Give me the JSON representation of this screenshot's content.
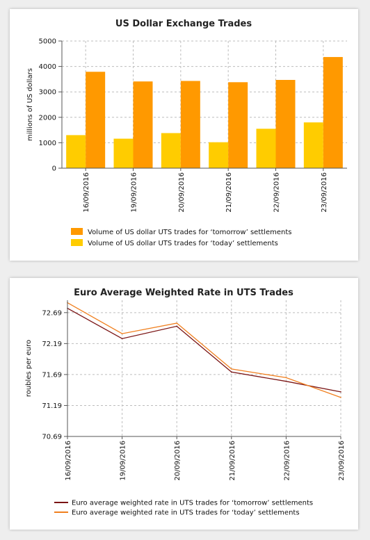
{
  "charts": [
    {
      "type": "bar",
      "title": "US Dollar Exchange Trades",
      "ylabel": "millions of US dollars",
      "xlabel": "",
      "ylim": [
        0,
        5000
      ],
      "yticks": [
        "0",
        "1000",
        "2000",
        "3000",
        "4000",
        "5000"
      ],
      "grid": true,
      "legend_position": "bottom",
      "categories": [
        "16/09/2016",
        "19/09/2016",
        "20/09/2016",
        "21/09/2016",
        "22/09/2016",
        "23/09/2016"
      ],
      "series": [
        {
          "name": "Volume of US dollar UTS trades for ‘today’ settlements",
          "color": "#ffcc00",
          "values": [
            1300,
            1160,
            1380,
            1020,
            1550,
            1800
          ]
        },
        {
          "name": "Volume of US dollar UTS trades for ‘tomorrow’ settlements",
          "color": "#ff9900",
          "values": [
            3790,
            3410,
            3430,
            3380,
            3470,
            4370
          ]
        }
      ],
      "legend_order": [
        1,
        0
      ]
    },
    {
      "type": "line",
      "title": "Euro Average Weighted Rate in UTS Trades",
      "ylabel": "roubles per euro",
      "xlabel": "",
      "ylim": [
        70.69,
        72.89
      ],
      "yticks": [
        "70.69",
        "71.19",
        "71.69",
        "72.19",
        "72.69"
      ],
      "grid": true,
      "legend_position": "bottom",
      "categories": [
        "16/09/2016",
        "19/09/2016",
        "20/09/2016",
        "21/09/2016",
        "22/09/2016",
        "23/09/2016"
      ],
      "series": [
        {
          "name": "Euro average weighted rate in UTS trades for ‘tomorrow’ settlements",
          "color": "#7a1414",
          "values": [
            72.76,
            72.27,
            72.47,
            71.73,
            71.58,
            71.41
          ]
        },
        {
          "name": "Euro average weighted rate in UTS trades for ‘today’ settlements",
          "color": "#f07f1e",
          "values": [
            72.85,
            72.35,
            72.52,
            71.78,
            71.64,
            71.32
          ]
        }
      ],
      "legend_order": [
        0,
        1
      ]
    }
  ]
}
